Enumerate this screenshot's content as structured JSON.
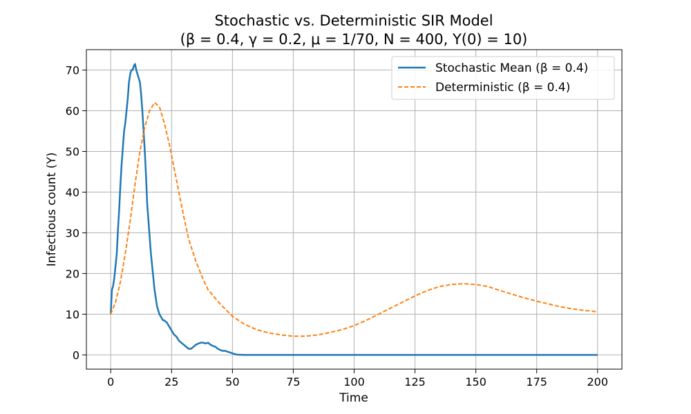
{
  "chart_data": {
    "type": "line",
    "title": "Stochastic vs. Deterministic SIR Model",
    "subtitle": "(β = 0.4, γ = 0.2, μ = 1/70, N = 400, Y(0) = 10)",
    "xlabel": "Time",
    "ylabel": "Infectious count (Y)",
    "xlim": [
      -10,
      210
    ],
    "ylim": [
      -3.5,
      75
    ],
    "xticks": [
      0,
      25,
      50,
      75,
      100,
      125,
      150,
      175,
      200
    ],
    "yticks": [
      0,
      10,
      20,
      30,
      40,
      50,
      60,
      70
    ],
    "grid": true,
    "legend_position": "top-right",
    "series": [
      {
        "name": "Stochastic Mean (β = 0.4)",
        "color": "#1f77b4",
        "style": "solid",
        "x": [
          0,
          0.5,
          1,
          1.5,
          2,
          2.5,
          3,
          3.5,
          4,
          4.5,
          5,
          5.5,
          6,
          6.5,
          7,
          7.5,
          8,
          8.5,
          9,
          9.5,
          10,
          10.5,
          11,
          11.5,
          12,
          12.5,
          13,
          13.5,
          14,
          14.5,
          15,
          15.5,
          16,
          16.5,
          17,
          17.5,
          18,
          18.5,
          19,
          19.5,
          20,
          20.5,
          21,
          21.5,
          22,
          22.5,
          23,
          23.5,
          24,
          25,
          26,
          27,
          28,
          29,
          30,
          31,
          32,
          33,
          34,
          35,
          36,
          37,
          38,
          39,
          40,
          41,
          42,
          43,
          44,
          45,
          46,
          47,
          48,
          49,
          50,
          51,
          52,
          55,
          60,
          80,
          100,
          125,
          150,
          175,
          200
        ],
        "y": [
          10,
          16,
          17,
          19,
          22,
          25,
          31,
          36,
          42,
          47,
          51,
          55,
          57,
          60,
          63,
          67,
          69,
          70,
          70,
          71,
          71.5,
          70,
          69,
          68,
          67,
          64,
          60,
          55,
          50,
          44,
          37,
          33,
          29,
          25,
          22,
          19,
          16,
          14,
          12,
          11,
          10,
          9.5,
          9,
          8.5,
          8.5,
          8.2,
          8,
          7.5,
          7,
          6,
          5,
          4.5,
          3.5,
          3,
          2.5,
          2,
          1.5,
          1.5,
          2,
          2.5,
          2.8,
          3,
          3,
          2.8,
          3,
          2.5,
          2.2,
          2,
          1.5,
          1.2,
          1,
          1,
          0.8,
          0.6,
          0.4,
          0.2,
          0.05,
          0,
          0,
          0,
          0,
          0,
          0,
          0,
          0
        ]
      },
      {
        "name": "Deterministic (β = 0.4)",
        "color": "#ff7f0e",
        "style": "dashed",
        "x": [
          0,
          2,
          4,
          6,
          8,
          10,
          12,
          14,
          16,
          18,
          20,
          22,
          24,
          26,
          28,
          30,
          32,
          35,
          38,
          40,
          45,
          50,
          55,
          60,
          65,
          70,
          75,
          80,
          85,
          90,
          95,
          100,
          105,
          110,
          115,
          120,
          125,
          130,
          135,
          140,
          145,
          150,
          155,
          160,
          165,
          170,
          175,
          180,
          185,
          190,
          195,
          200
        ],
        "y": [
          10,
          13,
          18,
          25,
          33,
          42,
          50,
          56,
          60,
          62,
          61,
          57,
          52,
          46,
          40,
          34,
          28.5,
          23,
          18.5,
          16,
          12.5,
          9.5,
          7.5,
          6.2,
          5.4,
          4.9,
          4.6,
          4.6,
          4.9,
          5.5,
          6.2,
          7.2,
          8.5,
          10,
          11.5,
          13,
          14.5,
          15.8,
          16.8,
          17.3,
          17.5,
          17.3,
          16.8,
          15.8,
          14.9,
          14,
          13.2,
          12.5,
          11.8,
          11.3,
          10.9,
          10.6
        ]
      }
    ]
  }
}
